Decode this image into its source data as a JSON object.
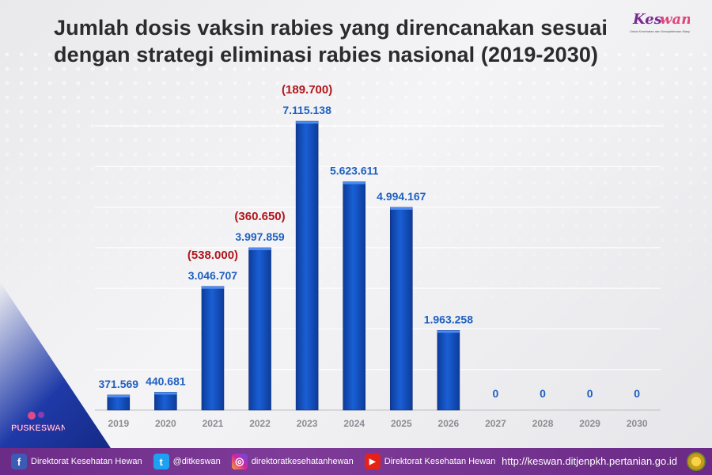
{
  "title": "Jumlah dosis vaksin rabies yang direncanakan sesuai dengan strategi eliminasi rabies nasional (2019-2030)",
  "logo_top": {
    "text": "Keswan",
    "tagline": "Untuk Kesehatan dan Kesejahteraan Masyarakat"
  },
  "logo_left": {
    "text": "PUSKESWAN"
  },
  "colors": {
    "bar": "#1a5fd6",
    "bar_dark": "#0d3c9a",
    "value_label": "#1f5fbf",
    "annotation": "#b0161c",
    "footer": "#732f8f"
  },
  "chart_data": {
    "type": "bar",
    "categories": [
      "2019",
      "2020",
      "2021",
      "2022",
      "2023",
      "2024",
      "2025",
      "2026",
      "2027",
      "2028",
      "2029",
      "2030"
    ],
    "values": [
      371569,
      440681,
      3046707,
      3997859,
      7115138,
      5623611,
      4994167,
      1963258,
      0,
      0,
      0,
      0
    ],
    "value_labels": [
      "371.569",
      "440.681",
      "3.046.707",
      "3.997.859",
      "7.115.138",
      "5.623.611",
      "4.994.167",
      "1.963.258",
      "0",
      "0",
      "0",
      "0"
    ],
    "annotations": [
      {
        "category": "2021",
        "text": "(538.000)"
      },
      {
        "category": "2022",
        "text": "(360.650)"
      },
      {
        "category": "2023",
        "text": "(189.700)"
      }
    ],
    "ylim": [
      0,
      7800000
    ],
    "grid": true,
    "xlabel": "",
    "ylabel": ""
  },
  "footer": {
    "facebook": "Direktorat Kesehatan Hewan",
    "twitter": "@ditkeswan",
    "instagram": "direktoratkesehatanhewan",
    "youtube": "Direktorat Kesehatan Hewan",
    "url": "http://keswan.ditjenpkh.pertanian.go.id"
  }
}
